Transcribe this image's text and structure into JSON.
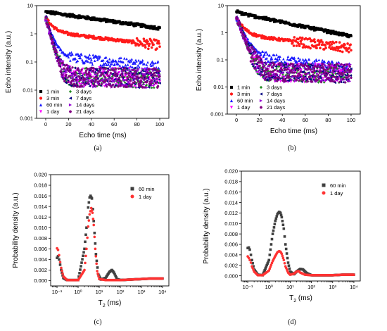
{
  "chart_data": [
    {
      "type": "scatter",
      "panel_label": "(a)",
      "xlabel": "Echo time (ms)",
      "ylabel": "Echo intensity (a.u.)",
      "xscale": "linear",
      "yscale": "log",
      "xlim": [
        -8,
        108
      ],
      "ylim": [
        0.001,
        10
      ],
      "x_ticks": [
        0,
        20,
        40,
        60,
        80,
        100
      ],
      "x_tick_labels": [
        "0",
        "20",
        "40",
        "60",
        "80",
        "100"
      ],
      "y_ticks": [
        0.001,
        0.01,
        0.1,
        1,
        10
      ],
      "y_tick_labels": [
        "0.001",
        "0.01",
        "0.1",
        "1",
        "10"
      ],
      "legend_position": "bottom-left",
      "series": [
        {
          "name": "1 min",
          "color": "#000000",
          "marker": "square",
          "decay": {
            "fast_amp": 0,
            "fast_tau_ms": 1,
            "slow_amp": 6.0,
            "slow_tau_ms": 75
          }
        },
        {
          "name": "3 min",
          "color": "#ff1a1a",
          "marker": "circle",
          "decay": {
            "fast_amp": 2.5,
            "fast_tau_ms": 5,
            "slow_amp": 1.2,
            "slow_tau_ms": 90
          }
        },
        {
          "name": "60 min",
          "color": "#1a1aff",
          "marker": "triangle-up",
          "decay": {
            "fast_amp": 3.0,
            "fast_tau_ms": 4,
            "slow_amp": 0.17,
            "slow_tau_ms": 120
          }
        },
        {
          "name": "1 day",
          "color": "#ff00ff",
          "marker": "triangle-down",
          "decay": {
            "fast_amp": 3.5,
            "fast_tau_ms": 3,
            "slow_amp": 0.03,
            "slow_tau_ms": 900
          }
        },
        {
          "name": "3 days",
          "color": "#228b22",
          "marker": "diamond",
          "decay": {
            "fast_amp": 3.5,
            "fast_tau_ms": 3,
            "slow_amp": 0.03,
            "slow_tau_ms": 900
          }
        },
        {
          "name": "7 days",
          "color": "#000080",
          "marker": "triangle-left",
          "decay": {
            "fast_amp": 3.5,
            "fast_tau_ms": 3,
            "slow_amp": 0.03,
            "slow_tau_ms": 900
          }
        },
        {
          "name": "14 days",
          "color": "#9400d3",
          "marker": "triangle-right",
          "decay": {
            "fast_amp": 3.5,
            "fast_tau_ms": 3,
            "slow_amp": 0.03,
            "slow_tau_ms": 900
          }
        },
        {
          "name": "21 days",
          "color": "#800080",
          "marker": "hexagon",
          "decay": {
            "fast_amp": 3.5,
            "fast_tau_ms": 3,
            "slow_amp": 0.03,
            "slow_tau_ms": 900
          }
        }
      ]
    },
    {
      "type": "scatter",
      "panel_label": "(b)",
      "xlabel": "Echo time (ms)",
      "ylabel": "Echo intensity (a.u.)",
      "xscale": "linear",
      "yscale": "log",
      "xlim": [
        -8,
        108
      ],
      "ylim": [
        0.001,
        10
      ],
      "x_ticks": [
        0,
        20,
        40,
        60,
        80,
        100
      ],
      "x_tick_labels": [
        "0",
        "20",
        "40",
        "60",
        "80",
        "100"
      ],
      "y_ticks": [
        0.001,
        0.01,
        0.1,
        1,
        10
      ],
      "y_tick_labels": [
        "0.001",
        "0.01",
        "0.1",
        "1",
        "10"
      ],
      "legend_position": "bottom-left",
      "series": [
        {
          "name": "1 min",
          "color": "#000000",
          "marker": "square",
          "decay": {
            "fast_amp": 0.5,
            "fast_tau_ms": 5,
            "slow_amp": 5.5,
            "slow_tau_ms": 50
          }
        },
        {
          "name": "3 min",
          "color": "#ff1a1a",
          "marker": "circle",
          "decay": {
            "fast_amp": 2.5,
            "fast_tau_ms": 5,
            "slow_amp": 0.9,
            "slow_tau_ms": 80
          }
        },
        {
          "name": "60 min",
          "color": "#1a1aff",
          "marker": "triangle-up",
          "decay": {
            "fast_amp": 3.0,
            "fast_tau_ms": 5,
            "slow_amp": 0.15,
            "slow_tau_ms": 90
          }
        },
        {
          "name": "1 day",
          "color": "#ff00ff",
          "marker": "triangle-down",
          "decay": {
            "fast_amp": 3.5,
            "fast_tau_ms": 4,
            "slow_amp": 0.035,
            "slow_tau_ms": 900
          }
        },
        {
          "name": "3 days",
          "color": "#228b22",
          "marker": "diamond",
          "decay": {
            "fast_amp": 3.5,
            "fast_tau_ms": 4,
            "slow_amp": 0.035,
            "slow_tau_ms": 900
          }
        },
        {
          "name": "7 days",
          "color": "#000080",
          "marker": "triangle-left",
          "decay": {
            "fast_amp": 3.5,
            "fast_tau_ms": 4,
            "slow_amp": 0.035,
            "slow_tau_ms": 900
          }
        },
        {
          "name": "14 days",
          "color": "#9400d3",
          "marker": "triangle-right",
          "decay": {
            "fast_amp": 3.5,
            "fast_tau_ms": 4,
            "slow_amp": 0.035,
            "slow_tau_ms": 900
          }
        },
        {
          "name": "21 days",
          "color": "#800080",
          "marker": "hexagon",
          "decay": {
            "fast_amp": 3.5,
            "fast_tau_ms": 4,
            "slow_amp": 0.035,
            "slow_tau_ms": 900
          }
        }
      ]
    },
    {
      "type": "scatter",
      "panel_label": "(c)",
      "xlabel": "T2 (ms)",
      "ylabel": "Probability density (a.u.)",
      "xscale": "log",
      "yscale": "linear",
      "xlim": [
        0.05,
        20000
      ],
      "ylim": [
        -0.001,
        0.02
      ],
      "x_ticks": [
        0.1,
        1,
        10,
        100,
        1000,
        10000
      ],
      "x_tick_labels": [
        "10⁻¹",
        "10⁰",
        "10¹",
        "10²",
        "10³",
        "10⁴"
      ],
      "y_ticks": [
        0,
        0.002,
        0.004,
        0.006,
        0.008,
        0.01,
        0.012,
        0.014,
        0.016,
        0.018,
        0.02
      ],
      "y_tick_labels": [
        "0.000",
        "0.002",
        "0.004",
        "0.006",
        "0.008",
        "0.010",
        "0.012",
        "0.014",
        "0.016",
        "0.018",
        "0.020"
      ],
      "legend_position": "top-right",
      "series": [
        {
          "name": "60 min",
          "color": "#404040",
          "marker": "square",
          "x": [
            0.1,
            0.112,
            0.125,
            0.141,
            0.158,
            0.2,
            0.3,
            1,
            2,
            2.5,
            3,
            3.5,
            3.9,
            4.5,
            5,
            6,
            7,
            9,
            12,
            20,
            30,
            40,
            50,
            70,
            100,
            300,
            1000,
            3000,
            10000
          ],
          "y": [
            0.0043,
            0.0046,
            0.004,
            0.003,
            0.002,
            0.0005,
            0.0001,
            0.0001,
            0.006,
            0.01,
            0.0138,
            0.0157,
            0.016,
            0.0155,
            0.0135,
            0.009,
            0.005,
            0.0012,
            0.0002,
            0.0005,
            0.0016,
            0.002,
            0.0015,
            0.0003,
            0.0001,
            0.0002,
            0.0003,
            0.0004,
            0.0004
          ]
        },
        {
          "name": "1 day",
          "color": "#ff3333",
          "marker": "circle",
          "x": [
            0.1,
            0.112,
            0.125,
            0.141,
            0.158,
            0.2,
            0.3,
            1,
            2,
            2.5,
            3,
            3.5,
            4.2,
            4.8,
            5.5,
            6.5,
            8,
            10,
            20,
            100,
            300,
            1000,
            3000,
            10000
          ],
          "y": [
            0.0061,
            0.0058,
            0.0048,
            0.0035,
            0.0024,
            0.0008,
            0.0001,
            0.0001,
            0.002,
            0.006,
            0.0102,
            0.0125,
            0.0137,
            0.0128,
            0.0105,
            0.006,
            0.0018,
            0.0003,
            0.0001,
            0.0001,
            0.0002,
            0.0003,
            0.0004,
            0.0004
          ]
        }
      ]
    },
    {
      "type": "scatter",
      "panel_label": "(d)",
      "xlabel": "T2 (ms)",
      "ylabel": "Probability density (a.u.)",
      "xscale": "log",
      "yscale": "linear",
      "xlim": [
        0.05,
        20000
      ],
      "ylim": [
        -0.001,
        0.02
      ],
      "x_ticks": [
        0.1,
        1,
        10,
        100,
        1000,
        10000
      ],
      "x_tick_labels": [
        "10⁻¹",
        "10⁰",
        "10¹",
        "10²",
        "10³",
        "10⁴"
      ],
      "y_ticks": [
        0,
        0.002,
        0.004,
        0.006,
        0.008,
        0.01,
        0.012,
        0.014,
        0.016,
        0.018,
        0.02
      ],
      "y_tick_labels": [
        "0.000",
        "0.002",
        "0.004",
        "0.006",
        "0.008",
        "0.010",
        "0.012",
        "0.014",
        "0.016",
        "0.018",
        "0.020"
      ],
      "legend_position": "top-right",
      "series": [
        {
          "name": "60 min",
          "color": "#404040",
          "marker": "square",
          "x": [
            0.1,
            0.112,
            0.125,
            0.141,
            0.158,
            0.2,
            0.3,
            0.5,
            1,
            1.5,
            2,
            2.5,
            3,
            3.5,
            4,
            5,
            6,
            8,
            10,
            15,
            20,
            30,
            40,
            60,
            100,
            300,
            1000,
            3000,
            10000
          ],
          "y": [
            0.0053,
            0.0054,
            0.005,
            0.004,
            0.003,
            0.0012,
            0.0002,
            0.0001,
            0.003,
            0.008,
            0.0105,
            0.0118,
            0.0122,
            0.012,
            0.0112,
            0.009,
            0.006,
            0.0025,
            0.0008,
            0.0003,
            0.0008,
            0.0013,
            0.0012,
            0.0005,
            0.0001,
            0.0001,
            0.0001,
            0.0002,
            0.0002
          ]
        },
        {
          "name": "1 day",
          "color": "#ff3333",
          "marker": "circle",
          "x": [
            0.1,
            0.112,
            0.125,
            0.141,
            0.158,
            0.2,
            0.3,
            0.5,
            1,
            1.5,
            2,
            2.5,
            3,
            3.5,
            4,
            5,
            6,
            8,
            10,
            15,
            20,
            25,
            30,
            50,
            100,
            300,
            1000,
            3000,
            10000
          ],
          "y": [
            0.0037,
            0.0034,
            0.003,
            0.0025,
            0.0018,
            0.0008,
            0.0001,
            0.0001,
            0.001,
            0.0028,
            0.0038,
            0.0045,
            0.0047,
            0.0046,
            0.0042,
            0.003,
            0.0018,
            0.0006,
            0.0002,
            0.0004,
            0.0008,
            0.0009,
            0.0006,
            0.0002,
            0.0001,
            0.0001,
            0.0001,
            0.0002,
            0.0002
          ]
        }
      ]
    }
  ]
}
